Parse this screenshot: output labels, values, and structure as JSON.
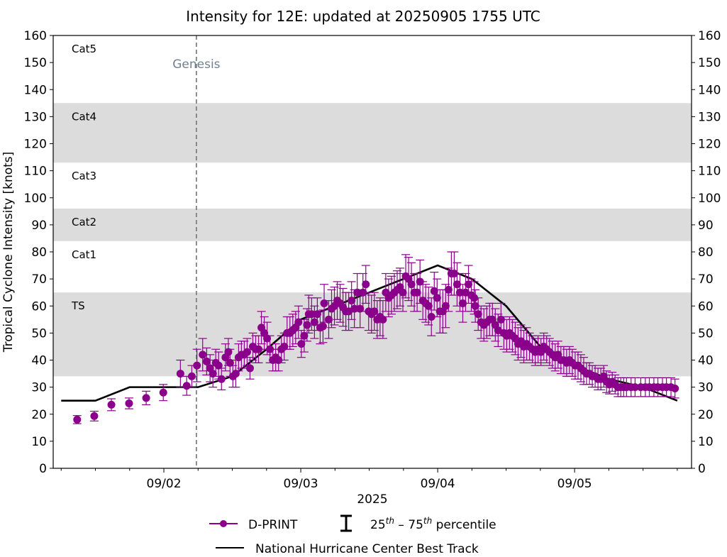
{
  "chart_data": {
    "type": "scatter",
    "title": "Intensity for 12E: updated at 20250905 1755 UTC",
    "xlabel": "2025",
    "ylabel": "Tropical Cyclone Intensity [knots]",
    "ylim": [
      0,
      160
    ],
    "yticks": [
      0,
      10,
      20,
      30,
      40,
      50,
      60,
      70,
      80,
      90,
      100,
      110,
      120,
      130,
      140,
      150,
      160
    ],
    "x_unit": "hours since 09/01 00 UTC",
    "xlim_hours": [
      4.6,
      116.5
    ],
    "xticks": [
      {
        "hours": 24,
        "label": "09/02"
      },
      {
        "hours": 48,
        "label": "09/03"
      },
      {
        "hours": 72,
        "label": "09/04"
      },
      {
        "hours": 96,
        "label": "09/05"
      }
    ],
    "minor_xtick_interval_hours": 6,
    "grid": false,
    "category_bands": [
      {
        "label": "TS",
        "low": 34,
        "high": 65,
        "shaded": true
      },
      {
        "label": "Cat1",
        "low": 65,
        "high": 84,
        "shaded": false
      },
      {
        "label": "Cat2",
        "low": 84,
        "high": 96,
        "shaded": true
      },
      {
        "label": "Cat3",
        "low": 96,
        "high": 113,
        "shaded": false
      },
      {
        "label": "Cat4",
        "low": 113,
        "high": 135,
        "shaded": true
      },
      {
        "label": "Cat5",
        "low": 135,
        "high": 160,
        "shaded": false
      }
    ],
    "genesis": {
      "label": "Genesis",
      "hours": 29.7
    },
    "legend": {
      "placement": "bottom-center",
      "entries": [
        {
          "label": "D-PRINT",
          "kind": "marker-line",
          "color": "#8B008B"
        },
        {
          "label_base": "25",
          "label_sup": "th",
          "label_mid": " – 75",
          "label_sup2": "th",
          "label_tail": " percentile",
          "kind": "errorbar",
          "color": "#000000"
        },
        {
          "label": "National Hurricane Center Best Track",
          "kind": "line",
          "color": "#000000"
        }
      ]
    },
    "colors": {
      "dprint": "#8B008B",
      "best_track": "#000000",
      "band": "#dcdcdc",
      "genesis": "#808080"
    },
    "series": [
      {
        "name": "National Hurricane Center Best Track",
        "type": "line",
        "x_hours": [
          6,
          12,
          18,
          24,
          30,
          36,
          42,
          48,
          54,
          60,
          66,
          72,
          78,
          84,
          90,
          96,
          102,
          108,
          114
        ],
        "values": [
          25,
          25,
          30,
          30,
          30,
          34,
          44,
          55,
          60,
          65,
          70,
          75,
          70,
          60,
          45,
          38,
          33,
          30,
          25
        ]
      },
      {
        "name": "D-PRINT",
        "type": "scatter-errorbar",
        "points": [
          [
            8.8,
            18,
            1.5
          ],
          [
            11.8,
            19.3,
            1.8
          ],
          [
            14.8,
            23.5,
            2.2
          ],
          [
            17.9,
            24,
            2
          ],
          [
            20.9,
            26,
            2.5
          ],
          [
            23.9,
            28,
            3
          ],
          [
            26.9,
            35,
            5
          ],
          [
            28,
            30.5,
            3.5
          ],
          [
            28.9,
            34,
            4
          ],
          [
            29.8,
            38,
            6
          ],
          [
            30.8,
            42,
            6
          ],
          [
            31.5,
            39.5,
            5
          ],
          [
            32.1,
            37,
            5
          ],
          [
            32.6,
            35,
            5
          ],
          [
            33.1,
            39,
            5
          ],
          [
            33.6,
            38,
            5
          ],
          [
            34.1,
            33,
            4
          ],
          [
            34.8,
            41,
            5
          ],
          [
            35.3,
            43,
            5
          ],
          [
            35.6,
            39,
            5
          ],
          [
            36.1,
            34,
            4
          ],
          [
            36.6,
            35,
            5
          ],
          [
            37.1,
            41,
            5
          ],
          [
            37.6,
            42,
            5
          ],
          [
            38.1,
            42,
            5
          ],
          [
            38.6,
            43,
            5
          ],
          [
            39.1,
            37,
            4
          ],
          [
            39.6,
            45,
            5
          ],
          [
            40.1,
            44,
            5
          ],
          [
            40.6,
            44,
            5
          ],
          [
            41.1,
            52,
            6
          ],
          [
            41.6,
            50,
            6
          ],
          [
            42.1,
            48,
            6
          ],
          [
            42.6,
            44,
            5
          ],
          [
            43.1,
            40,
            4
          ],
          [
            43.6,
            41,
            5
          ],
          [
            44.1,
            40,
            4
          ],
          [
            44.6,
            44,
            5
          ],
          [
            45.1,
            45,
            5
          ],
          [
            45.6,
            50,
            6
          ],
          [
            46.1,
            50,
            6
          ],
          [
            46.6,
            51,
            6
          ],
          [
            47.1,
            52,
            6
          ],
          [
            47.6,
            54,
            6
          ],
          [
            48.1,
            46,
            5
          ],
          [
            48.6,
            49,
            6
          ],
          [
            49.1,
            53,
            6
          ],
          [
            49.4,
            57,
            7
          ],
          [
            49.9,
            57,
            6
          ],
          [
            50.4,
            54,
            6
          ],
          [
            50.9,
            57,
            6
          ],
          [
            51.4,
            52,
            6
          ],
          [
            51.9,
            52.5,
            6
          ],
          [
            52.1,
            61,
            7
          ],
          [
            52.9,
            55,
            7
          ],
          [
            53.4,
            59,
            7
          ],
          [
            53.9,
            60,
            7
          ],
          [
            54.4,
            62,
            7
          ],
          [
            54.9,
            61,
            7
          ],
          [
            55.4,
            59.5,
            7
          ],
          [
            55.9,
            58,
            7
          ],
          [
            56.4,
            58,
            7
          ],
          [
            56.9,
            62,
            7
          ],
          [
            57.4,
            59,
            7
          ],
          [
            57.9,
            65,
            7
          ],
          [
            58.4,
            59,
            7
          ],
          [
            58.9,
            65,
            7
          ],
          [
            59.4,
            68,
            7
          ],
          [
            59.9,
            58,
            7
          ],
          [
            60.4,
            57,
            7
          ],
          [
            60.9,
            58,
            7
          ],
          [
            61.4,
            55,
            7
          ],
          [
            61.9,
            56,
            7
          ],
          [
            62.4,
            55,
            7
          ],
          [
            62.9,
            65,
            7
          ],
          [
            63.4,
            63,
            7
          ],
          [
            63.9,
            64,
            7
          ],
          [
            64.4,
            65,
            7
          ],
          [
            64.9,
            66,
            7
          ],
          [
            65.4,
            67,
            7
          ],
          [
            65.9,
            65,
            7
          ],
          [
            66.4,
            71,
            8
          ],
          [
            66.9,
            70,
            8
          ],
          [
            67.4,
            68,
            8
          ],
          [
            67.9,
            65,
            7
          ],
          [
            68.4,
            65,
            7
          ],
          [
            68.9,
            69,
            8
          ],
          [
            69.4,
            62,
            7
          ],
          [
            69.9,
            61,
            7
          ],
          [
            70.4,
            60,
            7
          ],
          [
            70.9,
            56,
            7
          ],
          [
            71.4,
            65.5,
            7
          ],
          [
            71.9,
            63,
            7
          ],
          [
            72.4,
            58,
            8
          ],
          [
            72.9,
            58,
            8
          ],
          [
            73.4,
            60,
            8
          ],
          [
            73.9,
            66,
            8
          ],
          [
            74.4,
            72,
            8
          ],
          [
            74.9,
            72,
            8
          ],
          [
            75.4,
            68,
            8
          ],
          [
            75.9,
            65,
            7
          ],
          [
            76.4,
            61,
            7
          ],
          [
            76.9,
            65,
            7
          ],
          [
            77.4,
            68,
            7
          ],
          [
            77.9,
            64,
            6
          ],
          [
            78.4,
            63,
            6
          ],
          [
            78.6,
            60,
            6
          ],
          [
            79.1,
            57,
            6
          ],
          [
            79.6,
            54,
            6
          ],
          [
            80.1,
            53,
            6
          ],
          [
            80.6,
            54,
            6
          ],
          [
            81.1,
            55,
            6
          ],
          [
            81.6,
            55,
            6
          ],
          [
            82.1,
            53,
            6
          ],
          [
            82.6,
            51,
            6
          ],
          [
            83.1,
            55,
            6
          ],
          [
            83.6,
            50,
            6
          ],
          [
            84.1,
            49,
            6
          ],
          [
            84.6,
            50,
            6
          ],
          [
            85.1,
            49,
            6
          ],
          [
            85.6,
            48,
            6
          ],
          [
            86.1,
            46,
            6
          ],
          [
            86.6,
            47,
            6
          ],
          [
            87.1,
            45,
            6
          ],
          [
            87.6,
            46,
            6
          ],
          [
            88.1,
            45,
            5
          ],
          [
            88.6,
            44,
            5
          ],
          [
            89.1,
            43,
            5
          ],
          [
            89.6,
            44,
            5
          ],
          [
            90.1,
            43,
            5
          ],
          [
            90.6,
            45,
            5
          ],
          [
            91.1,
            44,
            5
          ],
          [
            91.6,
            43,
            5
          ],
          [
            92.1,
            42,
            5
          ],
          [
            92.6,
            41,
            5
          ],
          [
            93.1,
            42,
            5
          ],
          [
            93.6,
            40,
            5
          ],
          [
            94.1,
            40,
            5
          ],
          [
            94.6,
            39,
            5
          ],
          [
            95.1,
            40,
            5
          ],
          [
            95.6,
            39,
            5
          ],
          [
            96.1,
            38,
            5
          ],
          [
            96.6,
            38,
            5
          ],
          [
            97.1,
            37,
            5
          ],
          [
            97.6,
            36,
            5
          ],
          [
            98.1,
            35,
            4
          ],
          [
            98.6,
            35,
            4
          ],
          [
            99.1,
            34,
            4
          ],
          [
            99.6,
            34,
            4
          ],
          [
            100.1,
            33,
            4
          ],
          [
            100.6,
            33,
            4
          ],
          [
            101.1,
            34,
            4
          ],
          [
            101.6,
            32,
            4
          ],
          [
            102.1,
            31,
            3.5
          ],
          [
            102.6,
            32,
            3.5
          ],
          [
            103.1,
            31,
            3.5
          ],
          [
            103.6,
            30,
            3.5
          ],
          [
            104.1,
            30,
            3.5
          ],
          [
            104.6,
            30,
            3.5
          ],
          [
            105.1,
            30,
            3.5
          ],
          [
            105.9,
            30,
            3.5
          ],
          [
            106.6,
            30,
            3.5
          ],
          [
            107.6,
            30,
            3.5
          ],
          [
            108.4,
            30,
            3.5
          ],
          [
            109.1,
            30,
            3.5
          ],
          [
            109.9,
            30,
            3.5
          ],
          [
            110.6,
            30,
            3.5
          ],
          [
            111.4,
            30,
            3.5
          ],
          [
            112.1,
            30,
            3.5
          ],
          [
            112.9,
            30,
            3.5
          ],
          [
            113.6,
            29.5,
            3.5
          ]
        ]
      }
    ]
  }
}
